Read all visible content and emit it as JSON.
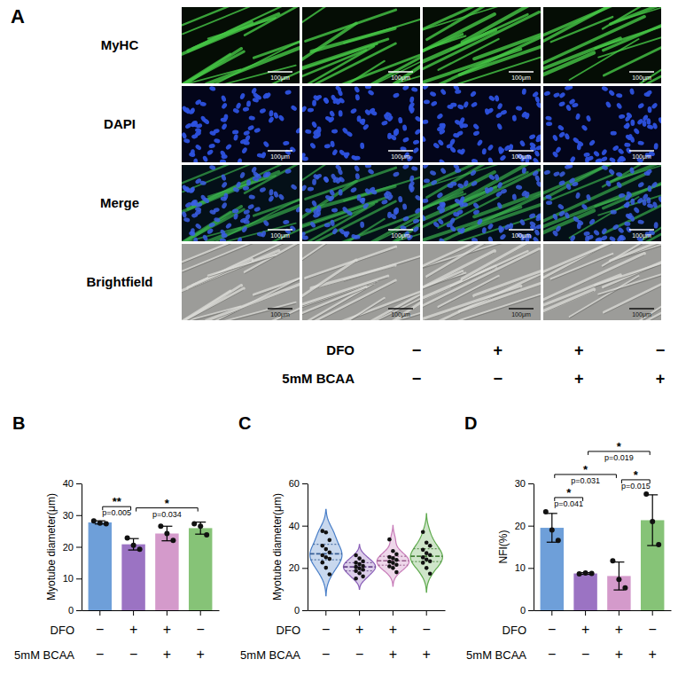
{
  "panel_a": {
    "letter": "A",
    "rows": [
      "MyHC",
      "DAPI",
      "Merge",
      "Brightfield"
    ],
    "scale_bar": "100μm",
    "conditions": [
      {
        "label": "DFO",
        "values": [
          "−",
          "+",
          "+",
          "−"
        ]
      },
      {
        "label": "5mM BCAA",
        "values": [
          "−",
          "−",
          "+",
          "+"
        ]
      }
    ]
  },
  "chart_data": [
    {
      "type": "bar",
      "panel": "B",
      "y_label": "Myotube diameter(μm)",
      "categories": [
        null,
        null,
        null,
        null
      ],
      "values": [
        27.7,
        20.8,
        24.2,
        25.9
      ],
      "errors": [
        0.5,
        1.8,
        2.3,
        1.9
      ],
      "points": [
        [
          28.2,
          27.5,
          27.3
        ],
        [
          22.8,
          20.5,
          19.2
        ],
        [
          26.5,
          24.2,
          22.0
        ],
        [
          27.3,
          26.5,
          23.8
        ]
      ],
      "colors": [
        "#6e9fd9",
        "#9b73c3",
        "#d49acb",
        "#86c377"
      ],
      "ylim": [
        0,
        40
      ],
      "yticks": [
        0,
        10,
        20,
        30,
        40
      ],
      "x_table": [
        {
          "label": "DFO",
          "values": [
            "−",
            "+",
            "+",
            "−"
          ]
        },
        {
          "label": "5mM BCAA",
          "values": [
            "−",
            "−",
            "+",
            "+"
          ]
        }
      ],
      "brackets": [
        {
          "groups": [
            0,
            1
          ],
          "stars": "**",
          "label": "p=0.005"
        },
        {
          "groups": [
            1,
            3
          ],
          "stars": "*",
          "label": "p=0.034"
        }
      ]
    },
    {
      "type": "violin",
      "panel": "C",
      "y_label": "Myotube diameter(μm)",
      "categories": [
        null,
        null,
        null,
        null
      ],
      "points": [
        [
          37.5,
          36.8,
          33.2,
          30.5,
          28.9,
          27.4,
          26.0,
          25.1,
          24.3,
          22.6,
          20.1,
          17.0
        ],
        [
          26.0,
          24.5,
          23.2,
          22.5,
          21.8,
          21.0,
          20.5,
          19.8,
          19.2,
          18.6,
          17.5,
          16.0,
          15.0
        ],
        [
          33.5,
          28.0,
          26.5,
          25.2,
          24.6,
          23.8,
          23.0,
          22.4,
          21.5,
          20.8,
          20.0,
          18.0
        ],
        [
          37.0,
          32.0,
          30.5,
          28.6,
          27.0,
          26.1,
          25.0,
          24.0,
          23.2,
          22.5,
          20.0,
          17.3
        ]
      ],
      "colors": [
        "#4a7fc8",
        "#8a5fb8",
        "#c77bb8",
        "#5faa4e"
      ],
      "ylim": [
        0,
        60
      ],
      "yticks": [
        0,
        20,
        40,
        60
      ],
      "x_table": [
        {
          "label": "DFO",
          "values": [
            "−",
            "+",
            "+",
            "−"
          ]
        },
        {
          "label": "5mM BCAA",
          "values": [
            "−",
            "−",
            "+",
            "+"
          ]
        }
      ]
    },
    {
      "type": "bar",
      "panel": "D",
      "y_label": "NFI(%)",
      "categories": [
        null,
        null,
        null,
        null
      ],
      "values": [
        19.5,
        8.7,
        8.1,
        21.3
      ],
      "errors": [
        3.4,
        0.2,
        3.3,
        6.0
      ],
      "points": [
        [
          23.3,
          19.0,
          16.5
        ],
        [
          8.6,
          8.8,
          8.7
        ],
        [
          11.7,
          7.3,
          5.3
        ],
        [
          27.5,
          21.0,
          15.5
        ]
      ],
      "colors": [
        "#6e9fd9",
        "#9b73c3",
        "#d49acb",
        "#86c377"
      ],
      "ylim": [
        0,
        30
      ],
      "yticks": [
        0,
        10,
        20,
        30
      ],
      "x_table": [
        {
          "label": "DFO",
          "values": [
            "−",
            "+",
            "+",
            "−"
          ]
        },
        {
          "label": "5mM BCAA",
          "values": [
            "−",
            "−",
            "+",
            "+"
          ]
        }
      ],
      "brackets": [
        {
          "groups": [
            0,
            1
          ],
          "stars": "*",
          "label": "p=0.041"
        },
        {
          "groups": [
            0,
            2
          ],
          "stars": "*",
          "label": "p=0.031"
        },
        {
          "groups": [
            2,
            3
          ],
          "stars": "*",
          "label": "p=0.015"
        },
        {
          "groups": [
            1,
            3
          ],
          "stars": "*",
          "label": "p=0.019"
        }
      ]
    }
  ]
}
